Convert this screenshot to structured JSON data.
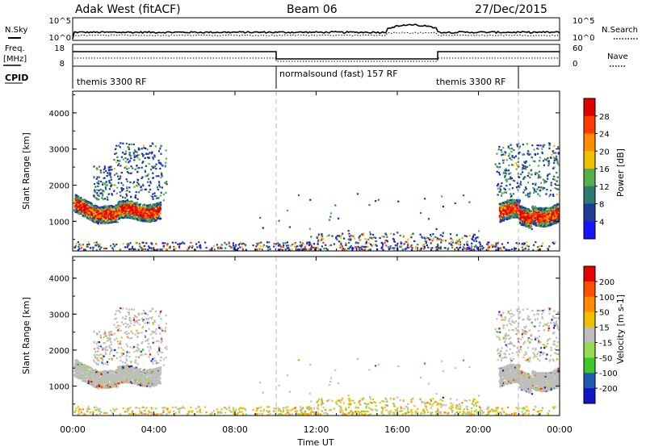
{
  "header": {
    "radar": "Adak West (fitACF)",
    "beam": "Beam 06",
    "date": "27/Dec/2015"
  },
  "top_panels": {
    "nsky_label": "N.Sky",
    "nsky_ticks": [
      "10^5",
      "10^0"
    ],
    "nsearch_label": "N.Search",
    "nsearch_ticks": [
      "10^5",
      "10^0"
    ],
    "freq_label_1": "Freq.",
    "freq_label_2": "[MHz]",
    "freq_ticks": [
      "18",
      "8"
    ],
    "nave_label": "Nave",
    "nave_ticks": [
      "60",
      "0"
    ],
    "cpid_label": "CPID",
    "cpid_segments": [
      {
        "label": "themis 3300 RF",
        "start": 0,
        "end": 10
      },
      {
        "label": "normalsound (fast) 157 RF",
        "start": 10,
        "end": 22
      },
      {
        "label": "themis 3300 RF",
        "start": 22,
        "end": 24
      }
    ]
  },
  "chart_data": [
    {
      "type": "heatmap",
      "panel": "power",
      "ylabel": "Slant Range [km]",
      "ylim": [
        180,
        4600
      ],
      "yticks": [
        1000,
        2000,
        3000,
        4000
      ],
      "xlim": [
        0,
        24
      ],
      "colorbar_label": "Power [dB]",
      "colorbar_ticks": [
        "4",
        "8",
        "12",
        "16",
        "20",
        "24",
        "28"
      ],
      "colorbar_colors": [
        "#1414ff",
        "#1e3c96",
        "#2e7a6e",
        "#55b04a",
        "#f0c000",
        "#ff8c00",
        "#ff3c00",
        "#e00000"
      ],
      "scatter_regions": [
        {
          "t0": 0.0,
          "t1": 4.3,
          "r0": 900,
          "r1": 1700,
          "level": "high"
        },
        {
          "t0": 1.0,
          "t1": 4.6,
          "r0": 1500,
          "r1": 3200,
          "level": "low"
        },
        {
          "t0": 21.0,
          "t1": 24.0,
          "r0": 800,
          "r1": 1900,
          "level": "high"
        },
        {
          "t0": 20.8,
          "t1": 24.0,
          "r0": 1600,
          "r1": 3200,
          "level": "low"
        },
        {
          "t0": 0.0,
          "t1": 24.0,
          "r0": 180,
          "r1": 420,
          "level": "noise"
        }
      ]
    },
    {
      "type": "heatmap",
      "panel": "velocity",
      "ylabel": "Slant Range [km]",
      "ylim": [
        180,
        4600
      ],
      "yticks": [
        1000,
        2000,
        3000,
        4000
      ],
      "xlim": [
        0,
        24
      ],
      "xticks": [
        "00:00",
        "04:00",
        "08:00",
        "12:00",
        "16:00",
        "20:00",
        "00:00"
      ],
      "xlabel": "Time UT",
      "colorbar_label": "Velocity [m s-1]",
      "colorbar_ticks": [
        "200",
        "100",
        "50",
        "15",
        "-15",
        "-50",
        "-100",
        "-200"
      ],
      "colorbar_colors": [
        "#1414c8",
        "#1e5ab4",
        "#3cc828",
        "#96dc50",
        "#bebebe",
        "#f0c000",
        "#ff8c00",
        "#ff5000",
        "#e60000"
      ],
      "ground_scatter_color": "#bebebe"
    }
  ]
}
